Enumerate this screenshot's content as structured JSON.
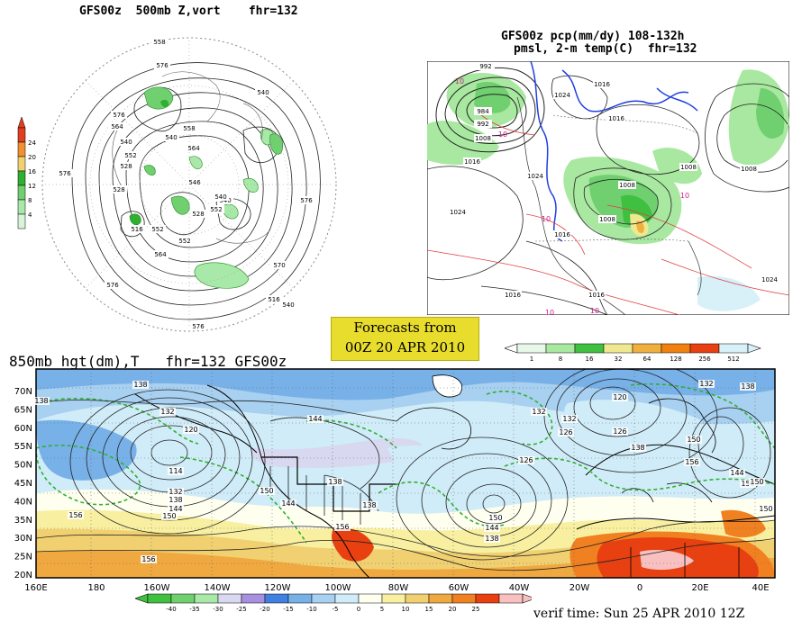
{
  "panel_500mb": {
    "title": "GFS00z  500mb Z,vort    fhr=132",
    "contour_labels": [
      "558",
      "576",
      "540",
      "576",
      "564",
      "552",
      "540",
      "528",
      "540",
      "558",
      "564",
      "546",
      "528",
      "540",
      "576",
      "576",
      "552",
      "528",
      "552",
      "516",
      "552",
      "564",
      "540",
      "570",
      "576",
      "540",
      "576",
      "516"
    ],
    "colorbar_ticks": [
      "24",
      "20",
      "16",
      "12",
      "8",
      "4"
    ],
    "colorbar_colors": [
      "#e04020",
      "#f09030",
      "#f0d070",
      "#30b030",
      "#70d070",
      "#a8e8a8",
      "#d8f4d8"
    ]
  },
  "panel_pmsl": {
    "title_line1": "GFS00z pcp(mm/dy) 108-132h",
    "title_line2": "pmsl, 2-m temp(C)  fhr=132",
    "contour_labels": [
      "992",
      "984",
      "992",
      "1008",
      "1016",
      "1024",
      "1024",
      "1016",
      "1016",
      "1024",
      "1008",
      "1016",
      "1008",
      "1008",
      "1016",
      "1016",
      "1008",
      "1024"
    ],
    "temp_labels": [
      "10",
      "10",
      "10",
      "10",
      "10",
      "10"
    ],
    "colorbar_ticks": [
      "1",
      "8",
      "16",
      "32",
      "64",
      "128",
      "256",
      "512"
    ],
    "colorbar_colors": [
      "#e8f8e8",
      "#a8e8a0",
      "#40c040",
      "#f0e890",
      "#f0b040",
      "#f08010",
      "#e84010",
      "#d8f0f8"
    ]
  },
  "forecast_box": {
    "line1": "Forecasts from",
    "line2": "00Z 20 APR 2010"
  },
  "panel_850mb": {
    "title": "850mb hgt(dm),T   fhr=132 GFS00z",
    "lat_labels": [
      "70N",
      "65N",
      "60N",
      "55N",
      "50N",
      "45N",
      "40N",
      "35N",
      "30N",
      "25N",
      "20N"
    ],
    "lon_labels": [
      "160E",
      "180",
      "160W",
      "140W",
      "120W",
      "100W",
      "80W",
      "60W",
      "40W",
      "20W",
      "0",
      "20E",
      "40E"
    ],
    "height_labels": [
      "138",
      "138",
      "132",
      "120",
      "114",
      "132",
      "138",
      "144",
      "150",
      "156",
      "156",
      "150",
      "144",
      "138",
      "156",
      "150",
      "144",
      "138",
      "132",
      "126",
      "126",
      "120",
      "126",
      "132",
      "138",
      "150",
      "156",
      "144",
      "150",
      "150",
      "150",
      "138",
      "132",
      "144",
      "138"
    ],
    "colorbar_ticks": [
      "-40",
      "-35",
      "-30",
      "-25",
      "-20",
      "-15",
      "-10",
      "-5",
      "0",
      "5",
      "10",
      "15",
      "20",
      "25"
    ],
    "colorbar_colors": [
      "#40c040",
      "#70d070",
      "#a8e8a8",
      "#d8d8f0",
      "#a890e0",
      "#4080e0",
      "#78b0e8",
      "#a8d0f0",
      "#d0ecf8",
      "#fffff0",
      "#f8f0a0",
      "#f0d070",
      "#f0a840",
      "#f08020",
      "#e84010",
      "#f8c0c0"
    ]
  },
  "verif_time": "verif time: Sun 25 APR 2010 12Z"
}
